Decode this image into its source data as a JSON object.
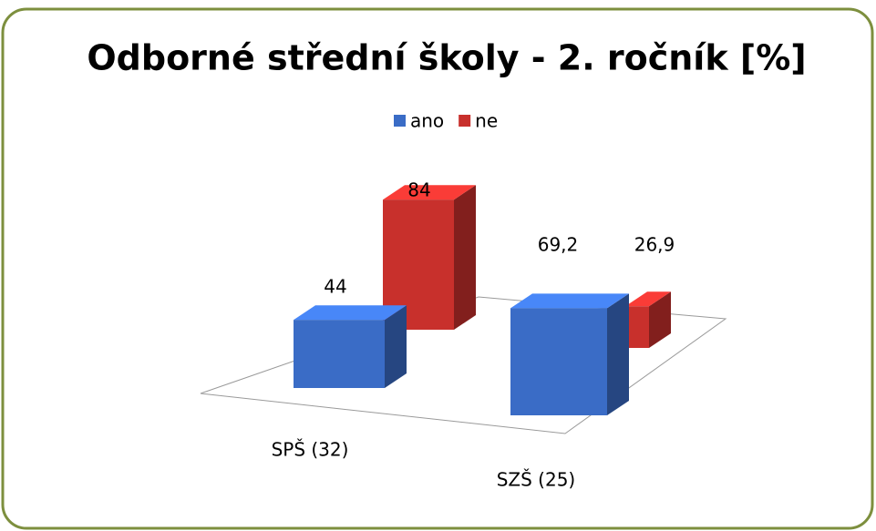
{
  "chart_data": {
    "type": "bar3d",
    "title": "Odborné střední školy - 2. ročník [%]",
    "categories": [
      "SPŠ (32)",
      "SZŠ (25)"
    ],
    "series": [
      {
        "name": "ano",
        "color": "#3a6cc6",
        "values": [
          44,
          69.2
        ],
        "value_labels": [
          "44",
          "69,2"
        ]
      },
      {
        "name": "ne",
        "color": "#c8302c",
        "values": [
          84,
          26.9
        ],
        "value_labels": [
          "84",
          "26,9"
        ]
      }
    ],
    "legend": "top"
  }
}
